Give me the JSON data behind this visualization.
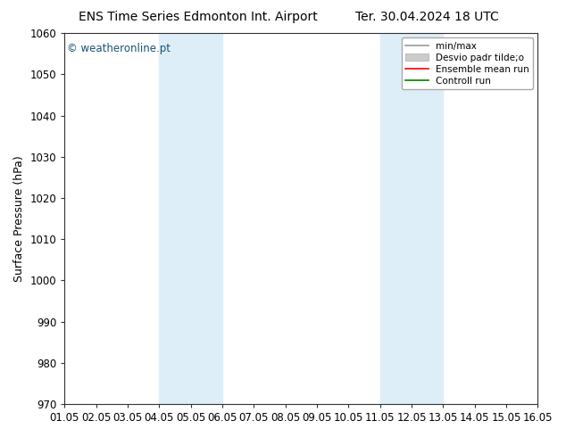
{
  "title_left": "ENS Time Series Edmonton Int. Airport",
  "title_right": "Ter. 30.04.2024 18 UTC",
  "ylabel": "Surface Pressure (hPa)",
  "watermark": "© weatheronline.pt",
  "ylim": [
    970,
    1060
  ],
  "yticks": [
    970,
    980,
    990,
    1000,
    1010,
    1020,
    1030,
    1040,
    1050,
    1060
  ],
  "xtick_labels": [
    "01.05",
    "02.05",
    "03.05",
    "04.05",
    "05.05",
    "06.05",
    "07.05",
    "08.05",
    "09.05",
    "10.05",
    "11.05",
    "12.05",
    "13.05",
    "14.05",
    "15.05",
    "16.05"
  ],
  "xtick_positions": [
    0,
    1,
    2,
    3,
    4,
    5,
    6,
    7,
    8,
    9,
    10,
    11,
    12,
    13,
    14,
    15
  ],
  "shaded_bands": [
    {
      "xstart": 3,
      "xend": 5,
      "color": "#ddeef8"
    },
    {
      "xstart": 10,
      "xend": 12,
      "color": "#ddeef8"
    }
  ],
  "legend_entries": [
    {
      "label": "min/max",
      "color": "#999999",
      "lw": 1.2,
      "type": "line"
    },
    {
      "label": "Desvio padr tilde;o",
      "color": "#cccccc",
      "lw": 8,
      "type": "band"
    },
    {
      "label": "Ensemble mean run",
      "color": "red",
      "lw": 1.2,
      "type": "line"
    },
    {
      "label": "Controll run",
      "color": "green",
      "lw": 1.2,
      "type": "line"
    }
  ],
  "background_color": "#ffffff",
  "plot_bg_color": "#ffffff",
  "title_fontsize": 10,
  "axis_label_fontsize": 9,
  "tick_fontsize": 8.5,
  "watermark_color": "#1a5276",
  "watermark_fontsize": 8.5
}
